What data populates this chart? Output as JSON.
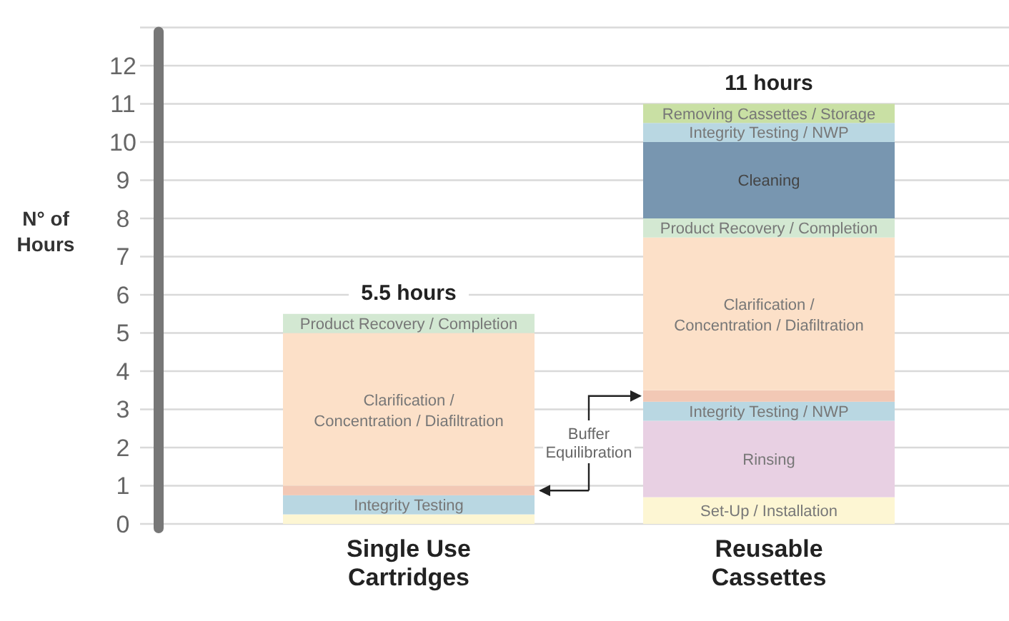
{
  "chart_data": {
    "type": "bar",
    "stacked": true,
    "ylabel": "N° of Hours",
    "categories": [
      "Single Use Cartridges",
      "Reusable Cassettes"
    ],
    "series": [
      {
        "name": "Set-Up / Installation",
        "color": "#fdf6d3",
        "values": [
          0.25,
          0.7
        ]
      },
      {
        "name": "Rinsing",
        "color": "#e8d0e3",
        "values": [
          null,
          2.0
        ]
      },
      {
        "name": "Integrity Testing",
        "color": "#b9d7e2",
        "values": [
          0.5,
          null
        ]
      },
      {
        "name": "Integrity Testing / NWP",
        "color": "#b9d7e2",
        "values": [
          null,
          0.5
        ]
      },
      {
        "color": "#f2c8b5",
        "values": [
          0.25,
          0.3
        ]
      },
      {
        "name": "Clarification / Concentration / Diafiltration",
        "color": "#fce0c8",
        "values": [
          4.0,
          4.0
        ]
      },
      {
        "name": "Product Recovery / Completion",
        "color": "#d3e8d2",
        "values": [
          0.5,
          0.5
        ]
      },
      {
        "name": "Cleaning",
        "color": "#7896b0",
        "values": [
          null,
          2.0
        ]
      },
      {
        "name": "Integrity Testing / NWP",
        "color": "#b9d7e2",
        "values": [
          null,
          0.5
        ]
      },
      {
        "name": "Removing Cassettes / Storage",
        "color": "#c9e0a4",
        "values": [
          null,
          0.5
        ]
      }
    ],
    "totals": [
      "5.5 hours",
      "11 hours"
    ],
    "ylim": [
      0,
      13
    ],
    "yticks": [
      0,
      1,
      2,
      3,
      4,
      5,
      6,
      7,
      8,
      9,
      10,
      11,
      12,
      {
        "value": 13,
        "label": null
      }
    ],
    "grid": "y",
    "annotations": [
      "Buffer Equilibration"
    ]
  }
}
